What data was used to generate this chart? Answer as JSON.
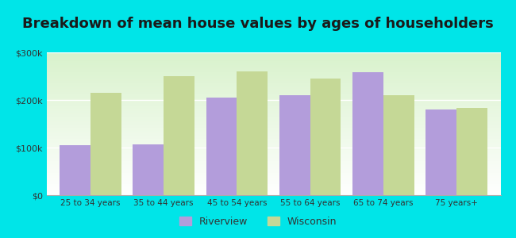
{
  "title": "Breakdown of mean house values by ages of householders",
  "categories": [
    "25 to 34 years",
    "35 to 44 years",
    "45 to 54 years",
    "55 to 64 years",
    "65 to 74 years",
    "75 years+"
  ],
  "riverview": [
    105000,
    107000,
    205000,
    210000,
    258000,
    180000
  ],
  "wisconsin": [
    215000,
    250000,
    260000,
    245000,
    210000,
    183000
  ],
  "riverview_color": "#b39ddb",
  "wisconsin_color": "#c5d896",
  "background_outer": "#00e5e8",
  "background_inner_top": "#e8f5e9",
  "background_inner_bottom": "#ffffff",
  "ylim": [
    0,
    300000
  ],
  "yticks": [
    0,
    100000,
    200000,
    300000
  ],
  "ytick_labels": [
    "$0",
    "$100k",
    "$200k",
    "$300k"
  ],
  "legend_labels": [
    "Riverview",
    "Wisconsin"
  ],
  "title_fontsize": 13,
  "bar_width": 0.42
}
